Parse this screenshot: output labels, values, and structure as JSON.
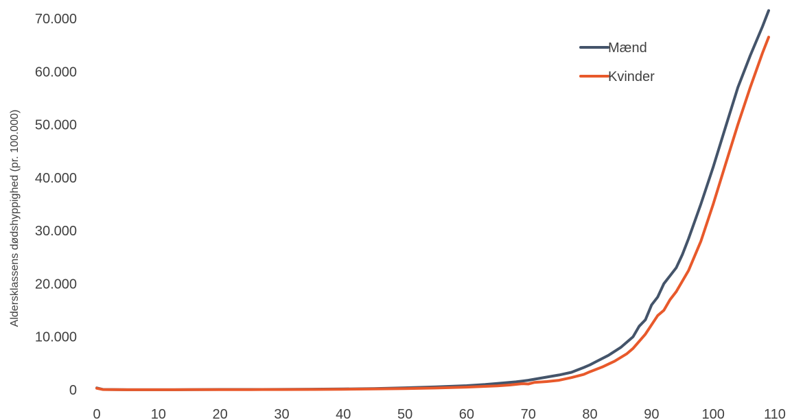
{
  "chart_data": {
    "type": "line",
    "ylabel": "Aldersklassens dødshyppighed (pr. 100.000)",
    "xlabel": "",
    "xlim": [
      0,
      110
    ],
    "ylim": [
      0,
      70000
    ],
    "grid": false,
    "legend_position": "top-right",
    "x_ticks": [
      0,
      10,
      20,
      30,
      40,
      50,
      60,
      70,
      80,
      90,
      100,
      110
    ],
    "x_tick_labels": [
      "0",
      "10",
      "20",
      "30",
      "40",
      "50",
      "60",
      "70",
      "80",
      "90",
      "100",
      "110"
    ],
    "y_ticks": [
      0,
      10000,
      20000,
      30000,
      40000,
      50000,
      60000,
      70000
    ],
    "y_tick_labels": [
      "0",
      "10.000",
      "20.000",
      "30.000",
      "40.000",
      "50.000",
      "60.000",
      "70.000"
    ],
    "series": [
      {
        "name": "Mænd",
        "color": "#44546a",
        "points": [
          [
            0,
            350
          ],
          [
            1,
            60
          ],
          [
            5,
            10
          ],
          [
            10,
            10
          ],
          [
            15,
            30
          ],
          [
            20,
            60
          ],
          [
            25,
            70
          ],
          [
            30,
            80
          ],
          [
            35,
            110
          ],
          [
            40,
            150
          ],
          [
            45,
            230
          ],
          [
            50,
            370
          ],
          [
            55,
            540
          ],
          [
            60,
            780
          ],
          [
            63,
            1000
          ],
          [
            65,
            1200
          ],
          [
            68,
            1500
          ],
          [
            70,
            1800
          ],
          [
            72,
            2200
          ],
          [
            75,
            2800
          ],
          [
            77,
            3300
          ],
          [
            79,
            4200
          ],
          [
            80,
            4700
          ],
          [
            81,
            5300
          ],
          [
            83,
            6500
          ],
          [
            85,
            8000
          ],
          [
            87,
            10000
          ],
          [
            88,
            12000
          ],
          [
            89,
            13200
          ],
          [
            90,
            16000
          ],
          [
            91,
            17500
          ],
          [
            92,
            20000
          ],
          [
            93,
            21500
          ],
          [
            94,
            23000
          ],
          [
            95,
            25500
          ],
          [
            96,
            28500
          ],
          [
            98,
            35000
          ],
          [
            100,
            42000
          ],
          [
            102,
            49500
          ],
          [
            104,
            57000
          ],
          [
            106,
            63000
          ],
          [
            108,
            68500
          ],
          [
            109,
            71500
          ]
        ]
      },
      {
        "name": "Kvinder",
        "color": "#e8592b",
        "points": [
          [
            0,
            280
          ],
          [
            1,
            50
          ],
          [
            5,
            10
          ],
          [
            10,
            10
          ],
          [
            15,
            20
          ],
          [
            20,
            30
          ],
          [
            25,
            40
          ],
          [
            30,
            50
          ],
          [
            35,
            70
          ],
          [
            40,
            100
          ],
          [
            45,
            150
          ],
          [
            50,
            230
          ],
          [
            55,
            340
          ],
          [
            60,
            500
          ],
          [
            65,
            750
          ],
          [
            67,
            900
          ],
          [
            69,
            1150
          ],
          [
            70,
            1100
          ],
          [
            71,
            1400
          ],
          [
            73,
            1550
          ],
          [
            75,
            1800
          ],
          [
            77,
            2300
          ],
          [
            79,
            2900
          ],
          [
            80,
            3400
          ],
          [
            82,
            4300
          ],
          [
            84,
            5400
          ],
          [
            86,
            6800
          ],
          [
            87,
            7800
          ],
          [
            89,
            10500
          ],
          [
            91,
            14000
          ],
          [
            92,
            15000
          ],
          [
            93,
            17000
          ],
          [
            94,
            18500
          ],
          [
            96,
            22500
          ],
          [
            98,
            28000
          ],
          [
            100,
            35000
          ],
          [
            102,
            42500
          ],
          [
            104,
            50000
          ],
          [
            106,
            57000
          ],
          [
            108,
            63500
          ],
          [
            109,
            66500
          ]
        ]
      }
    ]
  }
}
